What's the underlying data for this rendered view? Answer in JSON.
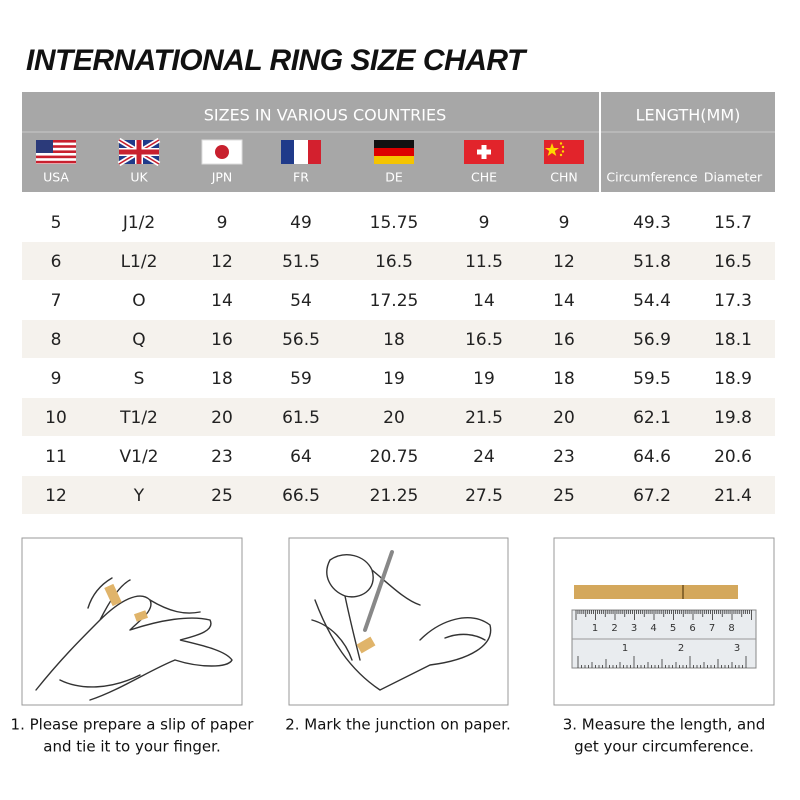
{
  "title": "INTERNATIONAL RING SIZE CHART",
  "table": {
    "group_headers": [
      "SIZES IN VARIOUS COUNTRIES",
      "LENGTH(MM)"
    ],
    "columns": [
      "USA",
      "UK",
      "JPN",
      "FR",
      "DE",
      "CHE",
      "CHN",
      "Circumference",
      "Diameter"
    ],
    "rows": [
      [
        "5",
        "J1/2",
        "9",
        "49",
        "15.75",
        "9",
        "9",
        "49.3",
        "15.7"
      ],
      [
        "6",
        "L1/2",
        "12",
        "51.5",
        "16.5",
        "11.5",
        "12",
        "51.8",
        "16.5"
      ],
      [
        "7",
        "O",
        "14",
        "54",
        "17.25",
        "14",
        "14",
        "54.4",
        "17.3"
      ],
      [
        "8",
        "Q",
        "16",
        "56.5",
        "18",
        "16.5",
        "16",
        "56.9",
        "18.1"
      ],
      [
        "9",
        "S",
        "18",
        "59",
        "19",
        "19",
        "18",
        "59.5",
        "18.9"
      ],
      [
        "10",
        "T1/2",
        "20",
        "61.5",
        "20",
        "21.5",
        "20",
        "62.1",
        "19.8"
      ],
      [
        "11",
        "V1/2",
        "23",
        "64",
        "20.75",
        "24",
        "23",
        "64.6",
        "20.6"
      ],
      [
        "12",
        "Y",
        "25",
        "66.5",
        "21.25",
        "27.5",
        "25",
        "67.2",
        "21.4"
      ]
    ]
  },
  "steps": [
    {
      "lines": [
        "1. Please prepare a slip of paper",
        "and tie it to your finger."
      ]
    },
    {
      "lines": [
        "2. Mark the junction on paper."
      ]
    },
    {
      "lines": [
        "3. Measure the length, and",
        "get your circumference."
      ]
    }
  ],
  "ruler": {
    "cm_labels": [
      "1",
      "2",
      "3",
      "4",
      "5",
      "6",
      "7",
      "8"
    ],
    "inch_labels": [
      "1",
      "2",
      "3"
    ]
  }
}
